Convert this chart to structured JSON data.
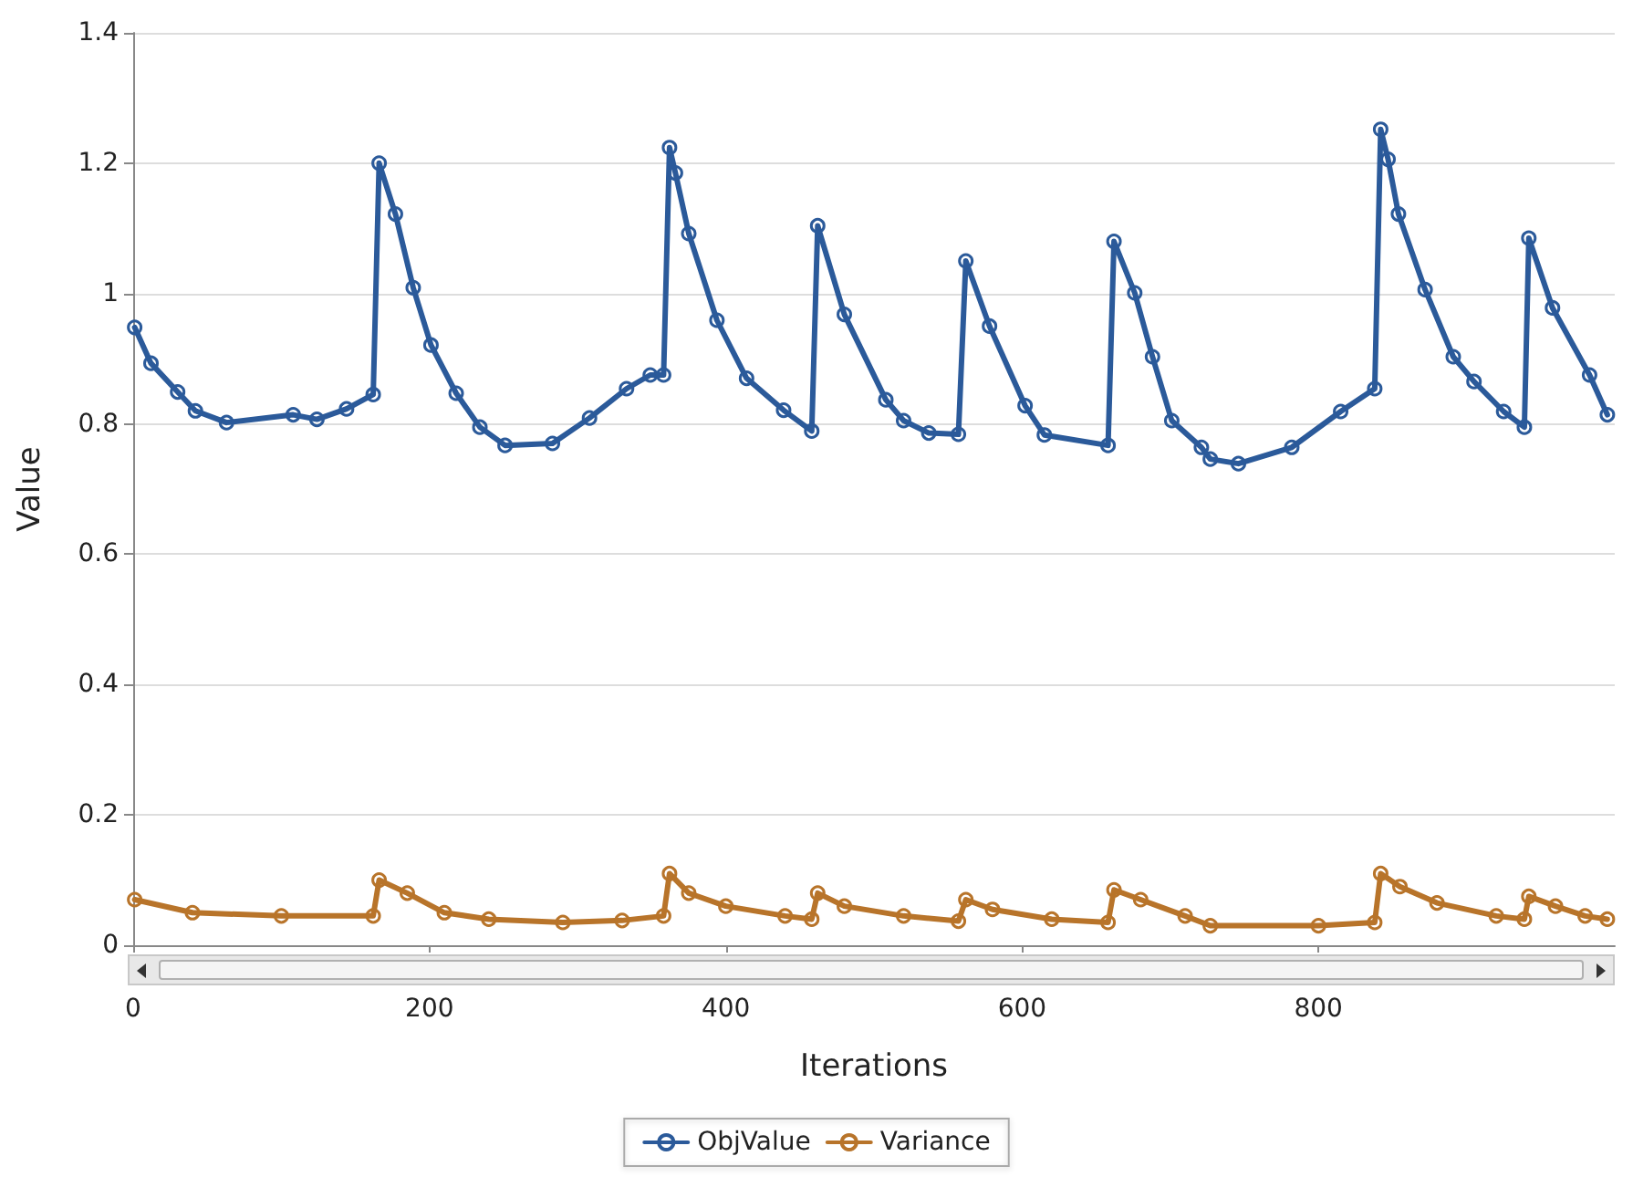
{
  "chart_data": {
    "type": "line",
    "xlabel": "Iterations",
    "ylabel": "Value",
    "xlim": [
      0,
      1000
    ],
    "xticks": [
      0,
      200,
      400,
      600,
      800
    ],
    "ylim": [
      0,
      1.4
    ],
    "yticks": [
      0,
      0.2,
      0.4,
      0.6,
      0.8,
      1,
      1.2,
      1.4
    ],
    "grid": "y",
    "legend": "bottom",
    "marker": "circle",
    "line_style": "solid",
    "series": [
      {
        "name": "ObjValue",
        "color": "#2b5a9a",
        "x": [
          1,
          12,
          30,
          42,
          63,
          108,
          124,
          144,
          162,
          166,
          177,
          189,
          201,
          218,
          234,
          251,
          283,
          308,
          333,
          349,
          358,
          362,
          366,
          375,
          394,
          414,
          439,
          458,
          462,
          480,
          508,
          520,
          537,
          557,
          562,
          578,
          602,
          615,
          658,
          662,
          676,
          688,
          701,
          721,
          727,
          746,
          782,
          815,
          838,
          842,
          847,
          854,
          872,
          891,
          905,
          925,
          939,
          942,
          958,
          983,
          995
        ],
        "values": [
          0.948,
          0.893,
          0.849,
          0.82,
          0.802,
          0.814,
          0.807,
          0.823,
          0.845,
          1.2,
          1.122,
          1.009,
          0.921,
          0.847,
          0.795,
          0.767,
          0.77,
          0.809,
          0.854,
          0.875,
          0.875,
          1.224,
          1.185,
          1.092,
          0.959,
          0.87,
          0.821,
          0.789,
          1.104,
          0.968,
          0.837,
          0.805,
          0.786,
          0.784,
          1.05,
          0.95,
          0.828,
          0.783,
          0.767,
          1.08,
          1.001,
          0.903,
          0.805,
          0.764,
          0.746,
          0.739,
          0.764,
          0.819,
          0.854,
          1.252,
          1.206,
          1.122,
          1.006,
          0.903,
          0.865,
          0.819,
          0.795,
          1.085,
          0.978,
          0.875,
          0.814
        ]
      },
      {
        "name": "Variance",
        "color": "#b8742a",
        "x": [
          1,
          40,
          100,
          162,
          166,
          185,
          210,
          240,
          290,
          330,
          358,
          362,
          375,
          400,
          440,
          458,
          462,
          480,
          520,
          557,
          562,
          580,
          620,
          658,
          662,
          680,
          710,
          727,
          800,
          838,
          842,
          855,
          880,
          920,
          939,
          942,
          960,
          980,
          995
        ],
        "values": [
          0.07,
          0.05,
          0.045,
          0.045,
          0.1,
          0.08,
          0.05,
          0.04,
          0.035,
          0.038,
          0.045,
          0.11,
          0.08,
          0.06,
          0.045,
          0.04,
          0.08,
          0.06,
          0.045,
          0.037,
          0.07,
          0.055,
          0.04,
          0.035,
          0.085,
          0.07,
          0.045,
          0.03,
          0.03,
          0.035,
          0.11,
          0.09,
          0.065,
          0.045,
          0.04,
          0.075,
          0.06,
          0.045,
          0.04
        ]
      }
    ]
  }
}
